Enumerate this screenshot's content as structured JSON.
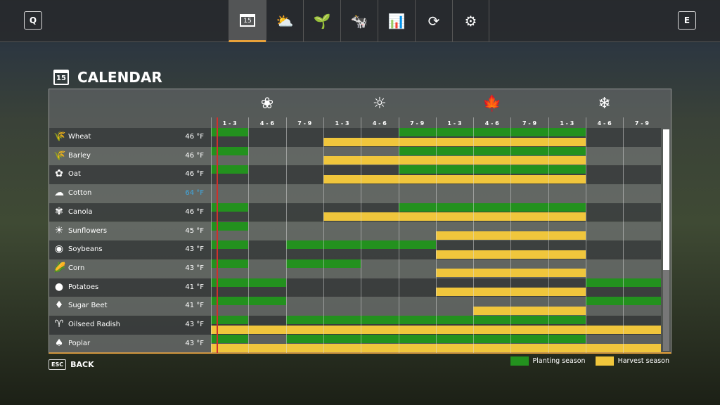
{
  "topbar": {
    "left_key": "Q",
    "right_key": "E",
    "tabs": [
      {
        "name": "calendar",
        "glyph": "15"
      },
      {
        "name": "weather",
        "glyph": "⛅"
      },
      {
        "name": "crops",
        "glyph": "🌱"
      },
      {
        "name": "animals",
        "glyph": "🐄"
      },
      {
        "name": "prices",
        "glyph": "📊"
      },
      {
        "name": "cycle",
        "glyph": "⟳"
      },
      {
        "name": "settings",
        "glyph": "⚙"
      }
    ]
  },
  "page": {
    "title": "CALENDAR",
    "icon_day": "15"
  },
  "seasons": [
    {
      "name": "spring",
      "glyph": "❀"
    },
    {
      "name": "summer",
      "glyph": "☼"
    },
    {
      "name": "autumn",
      "glyph": "🍁"
    },
    {
      "name": "winter",
      "glyph": "❄"
    }
  ],
  "periods": [
    "1 - 3",
    "4 - 6",
    "7 - 9",
    "1 - 3",
    "4 - 6",
    "7 - 9",
    "1 - 3",
    "4 - 6",
    "7 - 9",
    "1 - 3",
    "4 - 6",
    "7 - 9"
  ],
  "colors": {
    "planting": "#23911e",
    "harvest": "#f0c63c",
    "accent": "#e8a13a",
    "temp_warm": "#3fa8e0",
    "current": "#d0302c"
  },
  "crops": [
    {
      "name": "Wheat",
      "icon": "🌾",
      "temp": "46 °F",
      "plant": [
        [
          0,
          0
        ],
        [
          5,
          9
        ]
      ],
      "harvest": [
        [
          3,
          9
        ]
      ]
    },
    {
      "name": "Barley",
      "icon": "🌾",
      "temp": "46 °F",
      "plant": [
        [
          0,
          0
        ],
        [
          5,
          9
        ]
      ],
      "harvest": [
        [
          3,
          9
        ]
      ]
    },
    {
      "name": "Oat",
      "icon": "✿",
      "temp": "46 °F",
      "plant": [
        [
          0,
          0
        ],
        [
          5,
          9
        ]
      ],
      "harvest": [
        [
          3,
          9
        ]
      ]
    },
    {
      "name": "Cotton",
      "icon": "☁",
      "temp": "64 °F",
      "warm": true,
      "plant": [],
      "harvest": []
    },
    {
      "name": "Canola",
      "icon": "✾",
      "temp": "46 °F",
      "plant": [
        [
          0,
          0
        ],
        [
          5,
          9
        ]
      ],
      "harvest": [
        [
          3,
          9
        ]
      ]
    },
    {
      "name": "Sunflowers",
      "icon": "☀",
      "temp": "45 °F",
      "plant": [
        [
          0,
          0
        ]
      ],
      "harvest": [
        [
          6,
          9
        ]
      ]
    },
    {
      "name": "Soybeans",
      "icon": "◉",
      "temp": "43 °F",
      "plant": [
        [
          0,
          0
        ],
        [
          2,
          5
        ]
      ],
      "harvest": [
        [
          6,
          9
        ]
      ]
    },
    {
      "name": "Corn",
      "icon": "🌽",
      "temp": "43 °F",
      "plant": [
        [
          0,
          0
        ],
        [
          2,
          3
        ]
      ],
      "harvest": [
        [
          6,
          9
        ]
      ]
    },
    {
      "name": "Potatoes",
      "icon": "●",
      "temp": "41 °F",
      "plant": [
        [
          0,
          1
        ],
        [
          10,
          11
        ]
      ],
      "harvest": [
        [
          6,
          9
        ]
      ]
    },
    {
      "name": "Sugar Beet",
      "icon": "♦",
      "temp": "41 °F",
      "plant": [
        [
          0,
          1
        ],
        [
          10,
          11
        ]
      ],
      "harvest": [
        [
          7,
          9
        ]
      ]
    },
    {
      "name": "Oilseed Radish",
      "icon": "♈",
      "temp": "43 °F",
      "plant": [
        [
          0,
          0
        ],
        [
          2,
          9
        ]
      ],
      "harvest": [
        [
          0,
          11
        ]
      ]
    },
    {
      "name": "Poplar",
      "icon": "♠",
      "temp": "43 °F",
      "plant": [
        [
          0,
          0
        ],
        [
          2,
          9
        ]
      ],
      "harvest": [
        [
          0,
          11
        ]
      ]
    }
  ],
  "footer": {
    "esc_key": "ESC",
    "back_label": "BACK",
    "legend_planting": "Planting season",
    "legend_harvest": "Harvest season"
  }
}
